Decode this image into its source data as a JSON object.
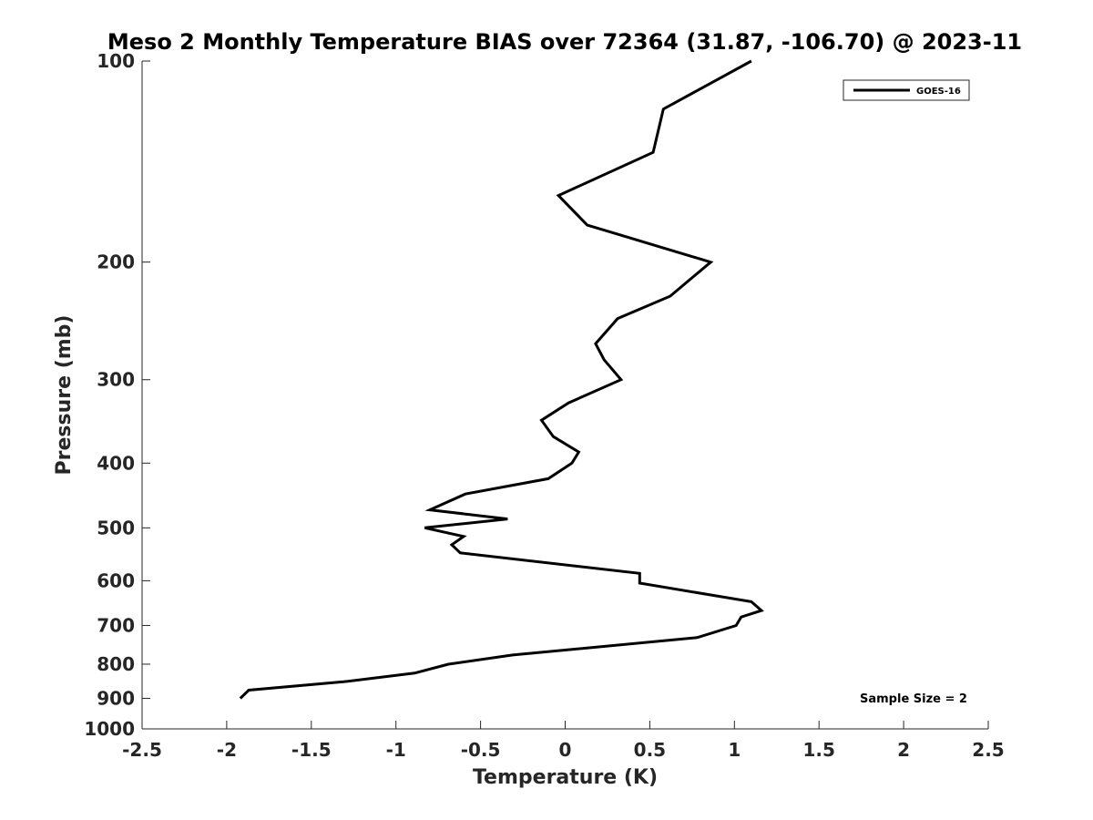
{
  "chart_data": {
    "type": "line",
    "title": "Meso 2 Monthly Temperature BIAS over 72364 (31.87, -106.70) @ 2023-11",
    "xlabel": "Temperature (K)",
    "ylabel": "Pressure (mb)",
    "xlim": [
      -2.5,
      2.5
    ],
    "ylim": [
      100,
      1000
    ],
    "y_scale": "log",
    "y_reversed": true,
    "x_ticks": [
      -2.5,
      -2,
      -1.5,
      -1,
      -0.5,
      0,
      0.5,
      1,
      1.5,
      2,
      2.5
    ],
    "x_tick_labels": [
      "-2.5",
      "-2",
      "-1.5",
      "-1",
      "-0.5",
      "0",
      "0.5",
      "1",
      "1.5",
      "2",
      "2.5"
    ],
    "y_ticks": [
      100,
      200,
      300,
      400,
      500,
      600,
      700,
      800,
      900,
      1000
    ],
    "y_tick_labels": [
      "100",
      "200",
      "300",
      "400",
      "500",
      "600",
      "700",
      "800",
      "900",
      "1000"
    ],
    "grid": false,
    "legend_position": "top-right",
    "series": [
      {
        "name": "GOES-16",
        "color": "#000000",
        "x": [
          1.1,
          0.58,
          0.52,
          -0.04,
          0.13,
          0.86,
          0.62,
          0.31,
          0.18,
          0.23,
          0.33,
          0.02,
          -0.14,
          -0.07,
          0.08,
          0.04,
          -0.1,
          -0.59,
          -0.8,
          -0.34,
          -0.83,
          -0.6,
          -0.67,
          -0.62,
          0.44,
          0.44,
          1.1,
          1.16,
          1.04,
          1.01,
          0.78,
          -0.31,
          -0.69,
          -0.89,
          -1.31,
          -1.87,
          -1.92
        ],
        "y": [
          100,
          118,
          137,
          159,
          176,
          200,
          225,
          243,
          265,
          280,
          300,
          325,
          345,
          365,
          385,
          400,
          422,
          445,
          470,
          485,
          500,
          515,
          530,
          545,
          585,
          605,
          645,
          665,
          680,
          700,
          730,
          775,
          800,
          825,
          850,
          875,
          900
        ]
      }
    ],
    "annotations": [
      "Sample Size = 2"
    ]
  }
}
